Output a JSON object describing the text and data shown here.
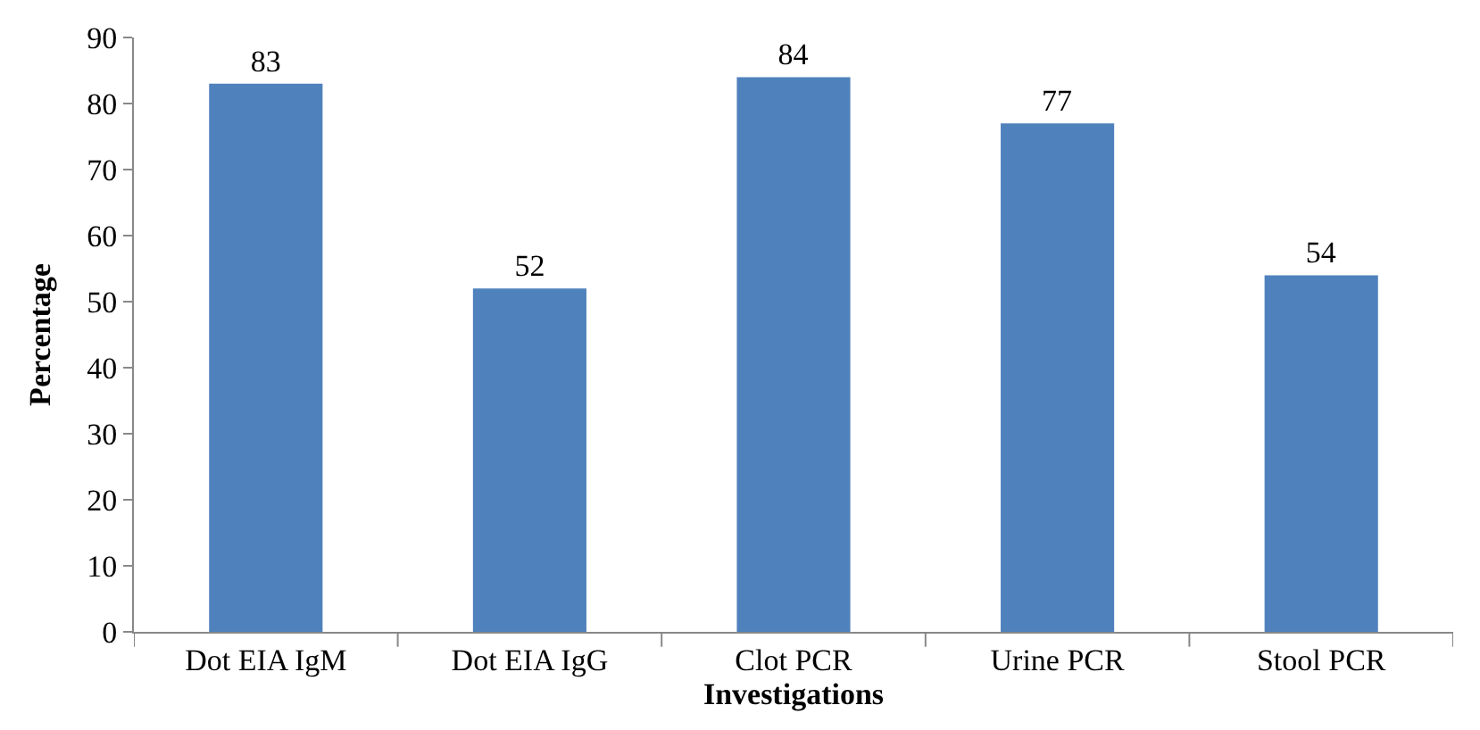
{
  "chart_data": {
    "type": "bar",
    "xlabel": "Investigations",
    "ylabel": "Percentage",
    "categories": [
      "Dot EIA IgM",
      "Dot EIA IgG",
      "Clot PCR",
      "Urine PCR",
      "Stool PCR"
    ],
    "values": [
      83,
      52,
      84,
      77,
      54
    ],
    "color": "#4f81bd",
    "ylim": [
      0,
      90
    ],
    "yticks": [
      0,
      10,
      20,
      30,
      40,
      50,
      60,
      70,
      80,
      90
    ],
    "data_labels": true
  }
}
